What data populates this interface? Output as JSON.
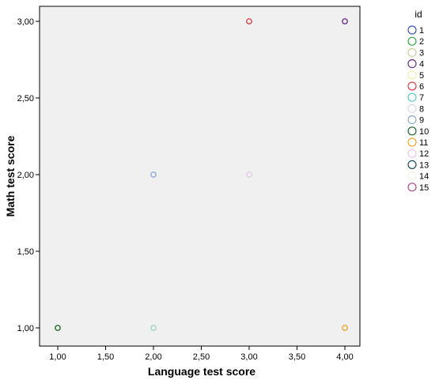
{
  "chart_data": {
    "type": "scatter",
    "xlabel": "Language test score",
    "ylabel": "Math test score",
    "xlim": [
      0.9,
      4.2
    ],
    "ylim": [
      0.9,
      3.1
    ],
    "x_ticks": [
      "1,00",
      "1,50",
      "2,00",
      "2,50",
      "3,00",
      "3,50",
      "4,00"
    ],
    "y_ticks": [
      "1,00",
      "1,50",
      "2,00",
      "2,50",
      "3,00"
    ],
    "grid": false,
    "legend": {
      "title": "id",
      "placement": "right"
    },
    "series": [
      {
        "name": "1",
        "color": "#3d55b8",
        "points": []
      },
      {
        "name": "2",
        "color": "#3ca64c",
        "points": []
      },
      {
        "name": "3",
        "color": "#d6cf9c",
        "points": []
      },
      {
        "name": "4",
        "color": "#6c2d8c",
        "points": [
          [
            4,
            3
          ]
        ]
      },
      {
        "name": "5",
        "color": "#f2efa6",
        "points": []
      },
      {
        "name": "6",
        "color": "#d9434b",
        "points": [
          [
            3,
            3
          ]
        ]
      },
      {
        "name": "7",
        "color": "#5ac9c9",
        "points": []
      },
      {
        "name": "8",
        "color": "#d9d9ea",
        "points": []
      },
      {
        "name": "9",
        "color": "#8daad6",
        "points": [
          [
            2,
            2
          ]
        ]
      },
      {
        "name": "10",
        "color": "#216b2b",
        "points": [
          [
            1,
            1
          ]
        ]
      },
      {
        "name": "11",
        "color": "#f0a431",
        "points": [
          [
            4,
            1
          ]
        ]
      },
      {
        "name": "12",
        "color": "#e9c6f1",
        "points": [
          [
            3,
            2
          ]
        ]
      },
      {
        "name": "13",
        "color": "#1b4e5e",
        "points": []
      },
      {
        "name": "14",
        "color": "#f0f4dc",
        "points": []
      },
      {
        "name": "15",
        "color": "#b44a8a",
        "points": []
      }
    ],
    "extra_points": [
      {
        "x": 2,
        "y": 1,
        "color": "#9cd3c4"
      }
    ]
  }
}
